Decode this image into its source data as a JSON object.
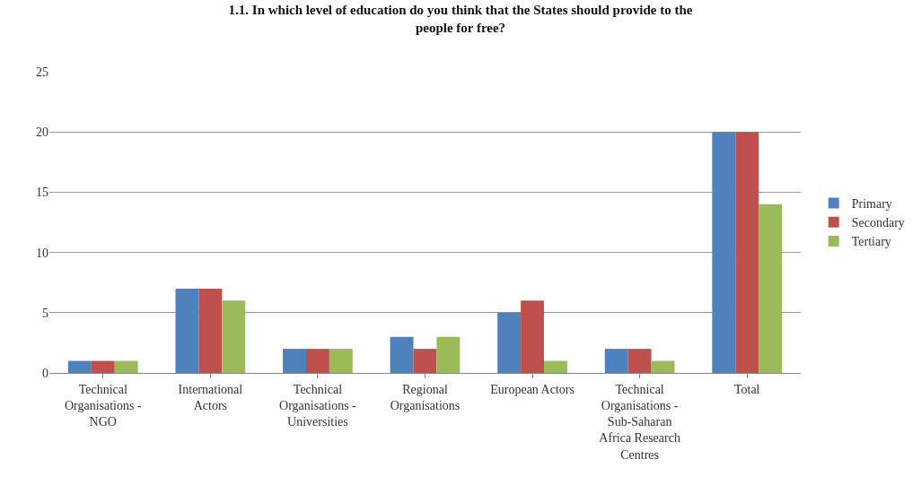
{
  "chart_data": {
    "type": "bar",
    "title": "1.1. In which level of education do you think that the States should provide to the people for free?",
    "categories": [
      "Technical Organisations - NGO",
      "International Actors",
      "Technical Organisations - Universities",
      "Regional Organisations",
      "European Actors",
      "Technical Organisations - Sub-Saharan Africa Research Centres",
      "Total"
    ],
    "series": [
      {
        "name": "Primary",
        "color": "#4f81bd",
        "values": [
          1,
          7,
          2,
          3,
          5,
          2,
          20
        ]
      },
      {
        "name": "Secondary",
        "color": "#c0504d",
        "values": [
          1,
          7,
          2,
          2,
          6,
          2,
          20
        ]
      },
      {
        "name": "Tertiary",
        "color": "#9bbb59",
        "values": [
          1,
          6,
          2,
          3,
          1,
          1,
          14
        ]
      }
    ],
    "ylim": [
      0,
      25
    ],
    "yticks": [
      0,
      5,
      10,
      15,
      20,
      25
    ],
    "grid": "y",
    "legend": "right"
  }
}
